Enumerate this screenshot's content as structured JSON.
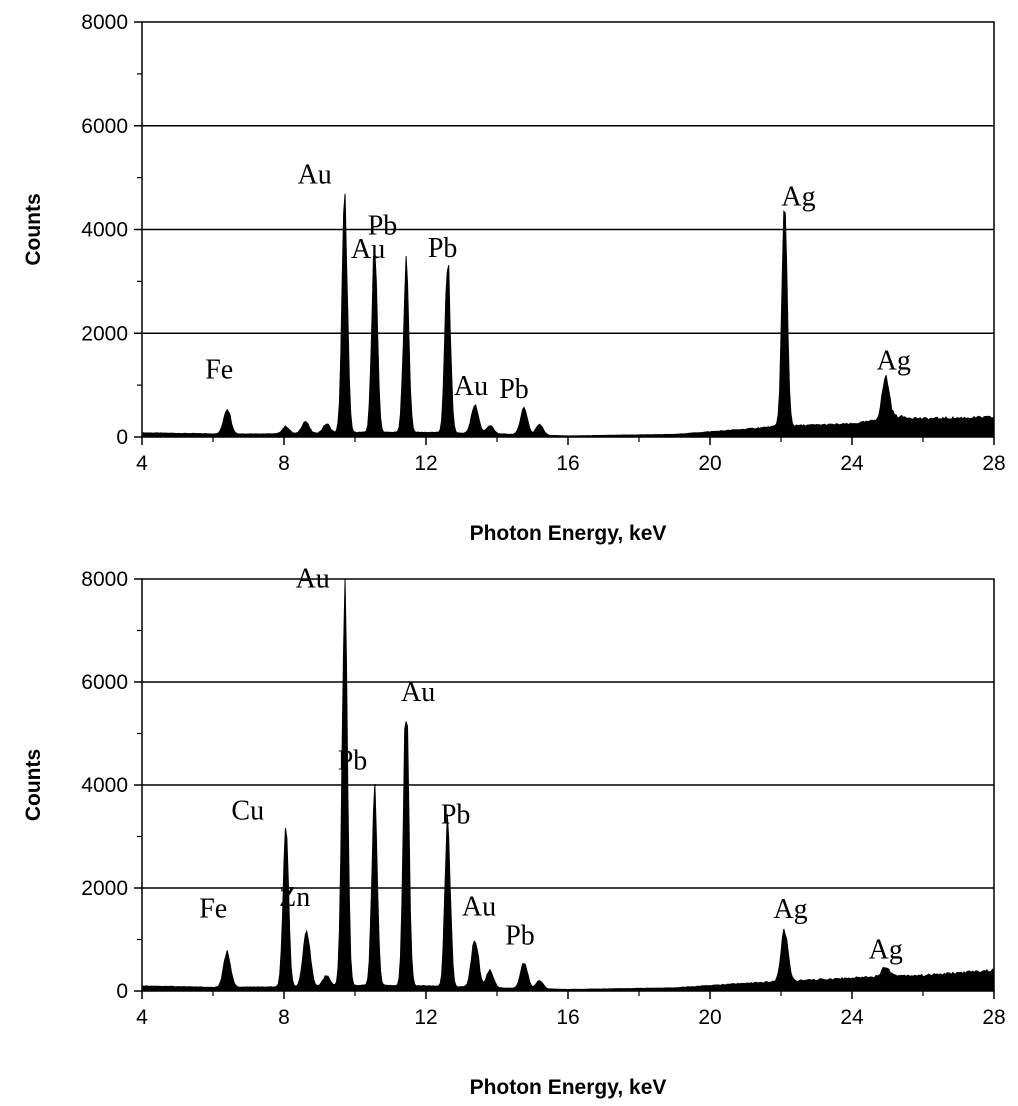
{
  "chart_data": [
    {
      "type": "area",
      "title": "",
      "xlabel": "Photon Energy, keV",
      "ylabel": "Counts",
      "xlim": [
        4,
        28
      ],
      "ylim": [
        0,
        8000
      ],
      "xticks": [
        4,
        8,
        12,
        16,
        20,
        24,
        28
      ],
      "yticks": [
        0,
        2000,
        4000,
        6000,
        8000
      ],
      "grid": true,
      "baseline": [
        [
          4,
          80
        ],
        [
          6,
          60
        ],
        [
          8,
          60
        ],
        [
          9.3,
          80
        ],
        [
          10,
          90
        ],
        [
          12,
          90
        ],
        [
          14,
          60
        ],
        [
          16,
          20
        ],
        [
          19,
          50
        ],
        [
          21,
          150
        ],
        [
          21.8,
          200
        ],
        [
          22.5,
          220
        ],
        [
          24,
          250
        ],
        [
          24.5,
          300
        ],
        [
          25.2,
          400
        ],
        [
          26,
          350
        ],
        [
          28,
          380
        ]
      ],
      "peaks": [
        {
          "x": 6.4,
          "y": 550,
          "label": "Fe"
        },
        {
          "x": 8.05,
          "y": 200,
          "label": ""
        },
        {
          "x": 8.6,
          "y": 300,
          "label": ""
        },
        {
          "x": 9.2,
          "y": 250,
          "label": ""
        },
        {
          "x": 9.71,
          "y": 4500,
          "label": "Au"
        },
        {
          "x": 10.55,
          "y": 3750,
          "label": "Pb"
        },
        {
          "x": 11.44,
          "y": 3300,
          "label": "Au"
        },
        {
          "x": 12.61,
          "y": 3350,
          "label": "Pb"
        },
        {
          "x": 13.38,
          "y": 620,
          "label": "Au"
        },
        {
          "x": 13.8,
          "y": 220,
          "label": ""
        },
        {
          "x": 14.76,
          "y": 560,
          "label": "Pb"
        },
        {
          "x": 15.2,
          "y": 250,
          "label": ""
        },
        {
          "x": 22.1,
          "y": 4350,
          "label": "Ag"
        },
        {
          "x": 24.95,
          "y": 1150,
          "label": "Ag"
        }
      ]
    },
    {
      "type": "area",
      "title": "",
      "xlabel": "Photon Energy, keV",
      "ylabel": "Counts",
      "xlim": [
        4,
        28
      ],
      "ylim": [
        0,
        8000
      ],
      "xticks": [
        4,
        8,
        12,
        16,
        20,
        24,
        28
      ],
      "yticks": [
        0,
        2000,
        4000,
        6000,
        8000
      ],
      "grid": true,
      "baseline": [
        [
          4,
          100
        ],
        [
          6,
          70
        ],
        [
          8,
          80
        ],
        [
          9.3,
          100
        ],
        [
          10,
          110
        ],
        [
          12,
          100
        ],
        [
          14,
          60
        ],
        [
          16,
          30
        ],
        [
          19,
          60
        ],
        [
          21,
          150
        ],
        [
          22.5,
          200
        ],
        [
          24,
          250
        ],
        [
          25,
          300
        ],
        [
          26,
          300
        ],
        [
          28,
          400
        ]
      ],
      "peaks": [
        {
          "x": 6.4,
          "y": 750,
          "label": "Fe"
        },
        {
          "x": 8.05,
          "y": 3100,
          "label": "Cu"
        },
        {
          "x": 8.64,
          "y": 1150,
          "label": "Zn"
        },
        {
          "x": 9.2,
          "y": 300,
          "label": ""
        },
        {
          "x": 9.71,
          "y": 7600,
          "label": "Au"
        },
        {
          "x": 10.55,
          "y": 3800,
          "label": "Pb"
        },
        {
          "x": 11.44,
          "y": 5550,
          "label": "Au"
        },
        {
          "x": 12.61,
          "y": 3250,
          "label": "Pb"
        },
        {
          "x": 13.38,
          "y": 1000,
          "label": "Au"
        },
        {
          "x": 13.8,
          "y": 400,
          "label": ""
        },
        {
          "x": 14.76,
          "y": 550,
          "label": "Pb"
        },
        {
          "x": 15.2,
          "y": 200,
          "label": ""
        },
        {
          "x": 22.1,
          "y": 1150,
          "label": "Ag"
        },
        {
          "x": 24.95,
          "y": 480,
          "label": "Ag"
        }
      ]
    }
  ]
}
